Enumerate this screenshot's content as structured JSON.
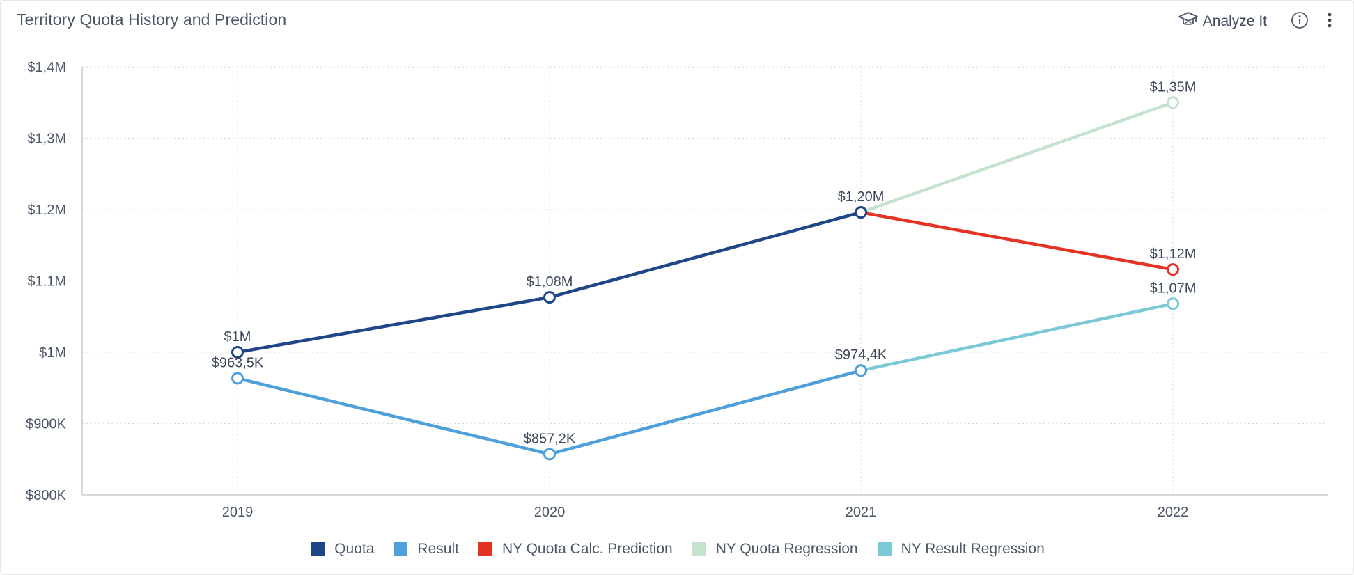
{
  "header": {
    "title": "Territory Quota History and Prediction",
    "analyze_label": "Analyze It"
  },
  "icons": {
    "analyze": "graduation-cap-icon",
    "info": "info-icon",
    "more": "vertical-ellipsis-icon"
  },
  "chart_data": {
    "type": "line",
    "categories": [
      "2019",
      "2020",
      "2021",
      "2022"
    ],
    "ylim": [
      800000,
      1400000
    ],
    "yticks": [
      {
        "value": 800000,
        "label": "$800K"
      },
      {
        "value": 900000,
        "label": "$900K"
      },
      {
        "value": 1000000,
        "label": "$1M"
      },
      {
        "value": 1100000,
        "label": "$1,1M"
      },
      {
        "value": 1200000,
        "label": "$1,2M"
      },
      {
        "value": 1300000,
        "label": "$1,3M"
      },
      {
        "value": 1400000,
        "label": "$1,4M"
      }
    ],
    "grid": true,
    "legend_position": "bottom",
    "series": [
      {
        "name": "Quota",
        "color": "#1f4788",
        "values": [
          1000000,
          1077000,
          1196000,
          null
        ],
        "labels": [
          "$1M",
          "$1,08M",
          null,
          null
        ]
      },
      {
        "name": "Result",
        "color": "#4f9fdb",
        "values": [
          963500,
          857200,
          974400,
          null
        ],
        "labels": [
          "$963,5K",
          "$857,2K",
          "$974,4K",
          null
        ]
      },
      {
        "name": "NY Quota Calc. Prediction",
        "color": "#e53323",
        "values": [
          null,
          null,
          1196000,
          1116000
        ],
        "labels": [
          null,
          null,
          null,
          "$1,12M"
        ]
      },
      {
        "name": "NY Quota Regression",
        "color": "#c4e3cf",
        "values": [
          null,
          null,
          1196000,
          1350000
        ],
        "labels": [
          null,
          null,
          "$1,20M",
          "$1,35M"
        ]
      },
      {
        "name": "NY Result Regression",
        "color": "#7bc8d6",
        "values": [
          null,
          null,
          974400,
          1068000
        ],
        "labels": [
          null,
          null,
          null,
          "$1,07M"
        ]
      }
    ]
  }
}
